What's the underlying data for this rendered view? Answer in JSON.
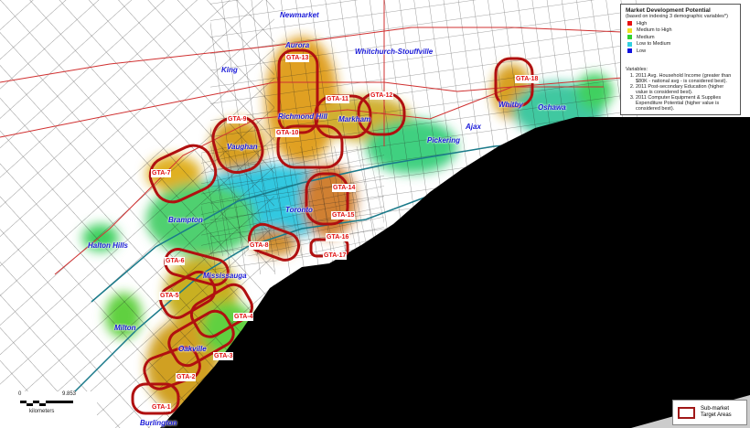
{
  "legend": {
    "title": "Market Development Potential",
    "subtitle": "(based on indexing 3 demographic variables*)",
    "classes": [
      {
        "label": "High",
        "color": "#e81010"
      },
      {
        "label": "Medium to High",
        "color": "#f0e020"
      },
      {
        "label": "Medium",
        "color": "#30d030"
      },
      {
        "label": "Low to Medium",
        "color": "#30d0e0"
      },
      {
        "label": "Low",
        "color": "#1010e0"
      }
    ],
    "variables_heading": "Variables:",
    "variables": [
      "2011 Avg. Household Income (greater than $80K - national avg - is considered best).",
      "2011 Post-secondary Education (higher value is considered best).",
      "2011 Computer Equipment & Supplies Expenditure Potential (higher value is considered best)."
    ]
  },
  "scale": {
    "start": "0",
    "end": "9.853",
    "unit": "kilometers"
  },
  "target_legend": {
    "label": "Sub-market Target Areas",
    "color": "#a01818"
  },
  "towns": [
    "Newmarket",
    "Aurora",
    "King",
    "Whitchurch-Stouffville",
    "Richmond Hill",
    "Markham",
    "Vaughan",
    "Brampton",
    "Toronto",
    "Halton Hills",
    "Mississauga",
    "Milton",
    "Oakville",
    "Burlington",
    "Pickering",
    "Ajax",
    "Whitby",
    "Oshawa"
  ],
  "target_areas": [
    "GTA-1",
    "GTA-2",
    "GTA-3",
    "GTA-4",
    "GTA-5",
    "GTA-6",
    "GTA-7",
    "GTA-8",
    "GTA-9",
    "GTA-10",
    "GTA-11",
    "GTA-12",
    "GTA-13",
    "GTA-14",
    "GTA-15",
    "GTA-16",
    "GTA-17",
    "GTA-18"
  ],
  "colors": {
    "lake": "#000000",
    "town_label": "#1a1ad8",
    "target_label": "#e01010",
    "target_outline": "#b01010"
  }
}
